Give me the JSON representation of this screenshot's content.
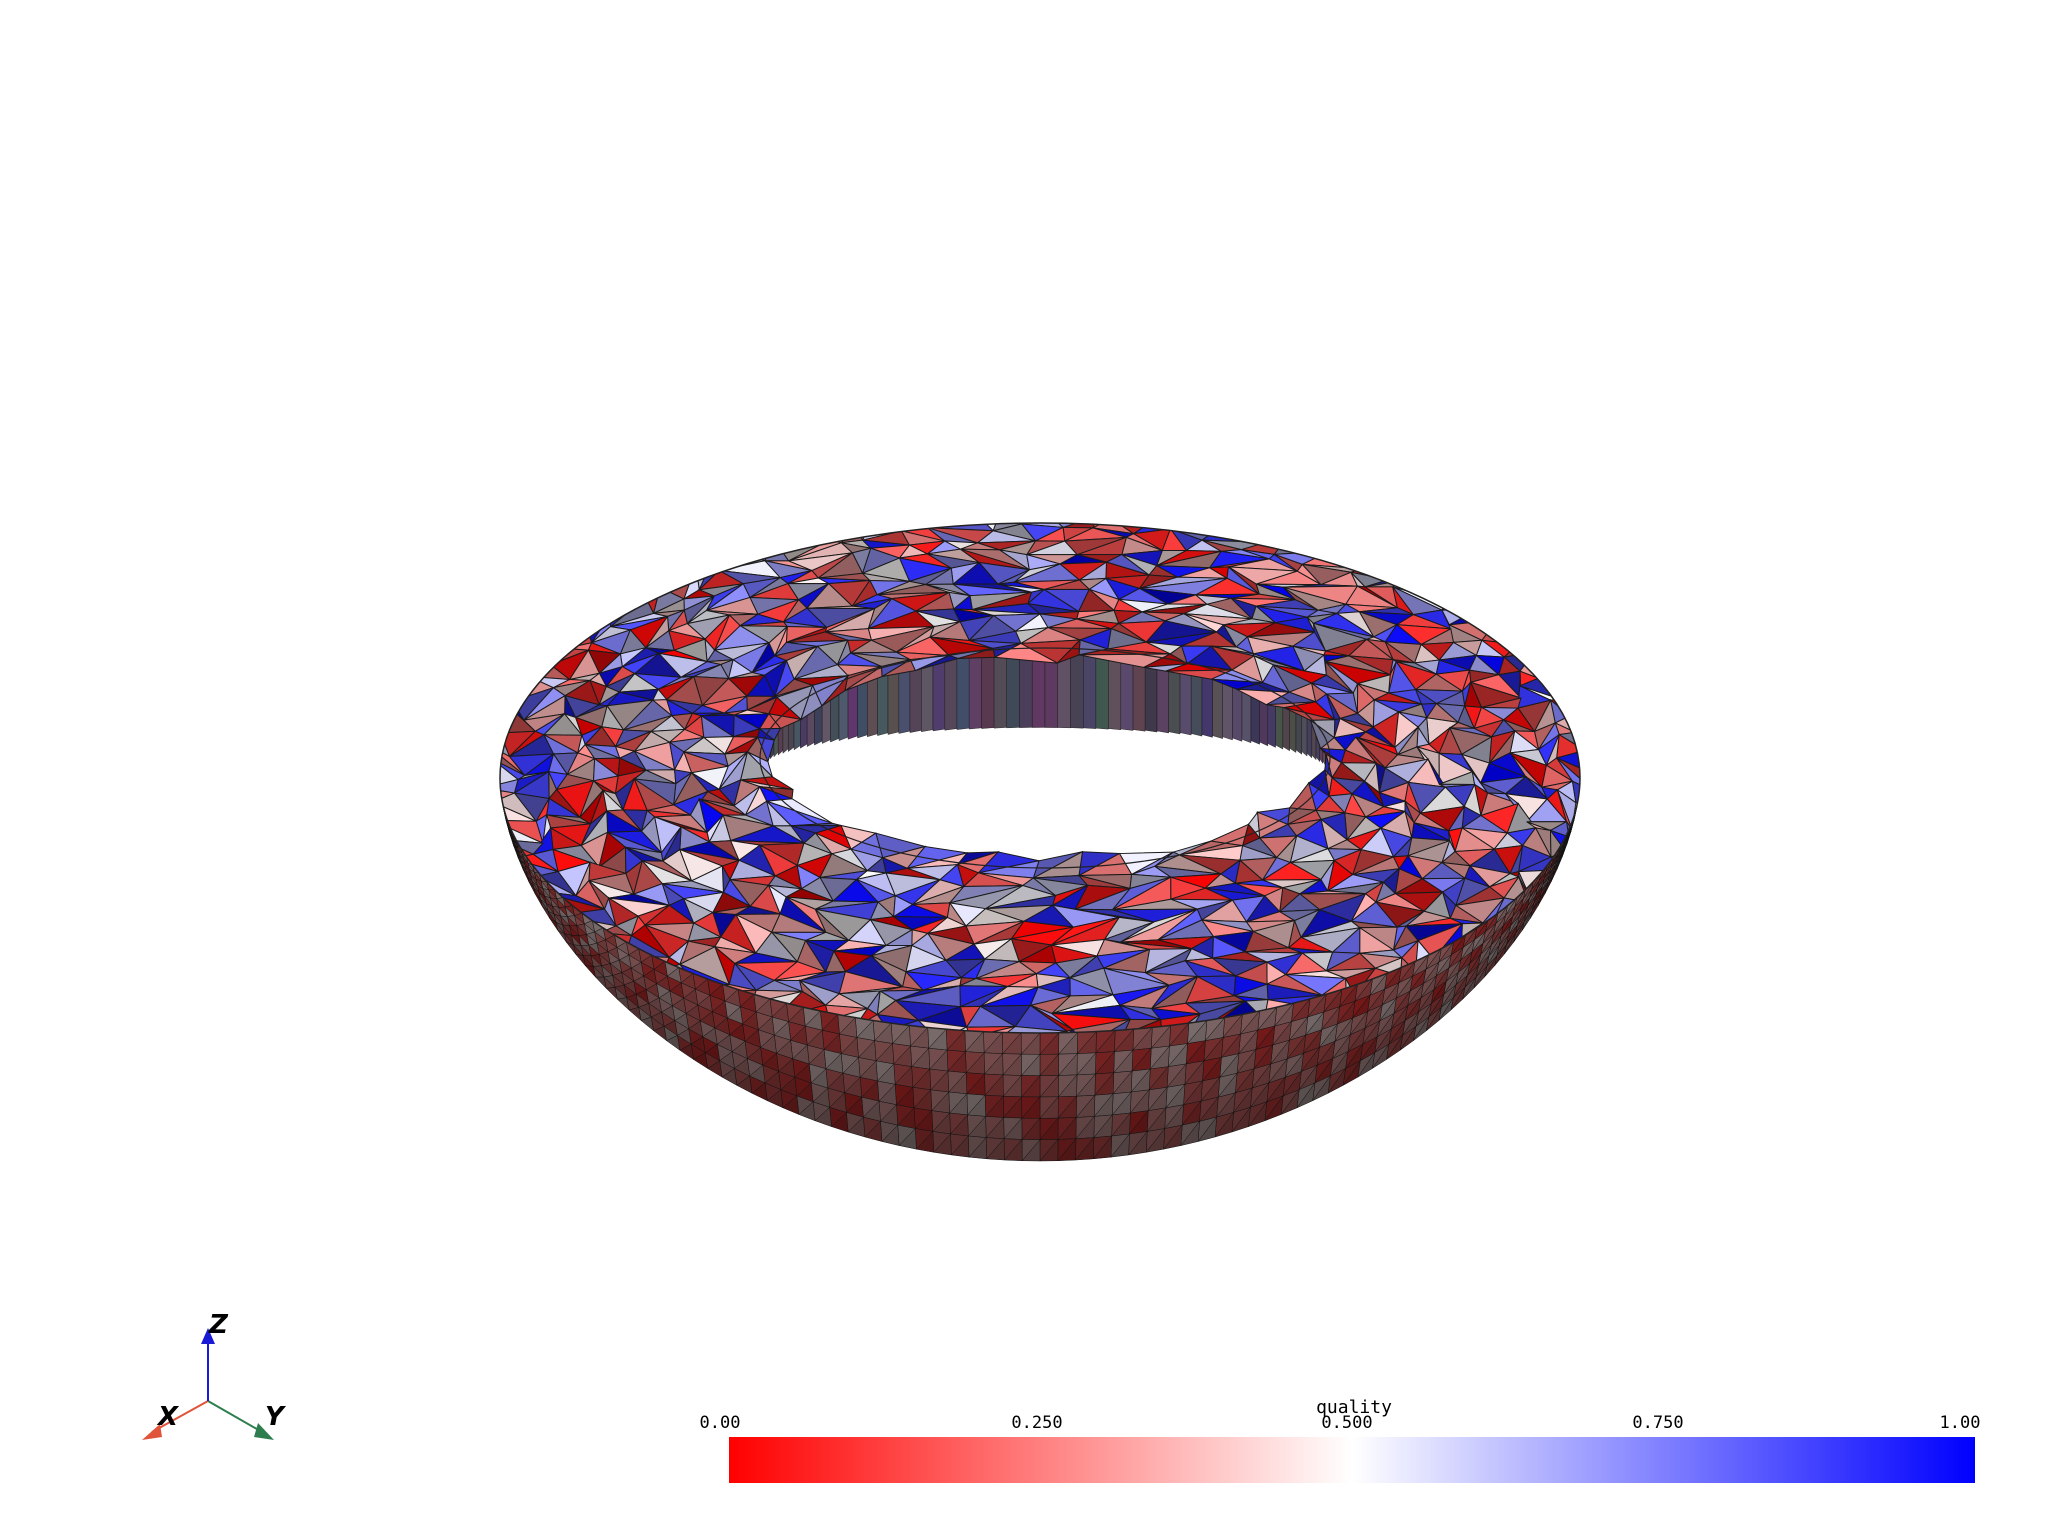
{
  "colorbar": {
    "title": "quality",
    "ticks": [
      "0.00",
      "0.250",
      "0.500",
      "0.750",
      "1.00"
    ],
    "range": [
      0,
      1
    ],
    "colormap": [
      "#ff0000",
      "#ffffff",
      "#0000ff"
    ]
  },
  "axes_widget": {
    "x_label": "X",
    "y_label": "Y",
    "z_label": "Z",
    "x_color": "#e0543a",
    "y_color": "#2e7d4f",
    "z_color": "#1a1ad6"
  },
  "scene": {
    "object": "tetrahedral-mesh-torus-cutaway",
    "scalar": "quality",
    "edge_color": "#000000"
  }
}
